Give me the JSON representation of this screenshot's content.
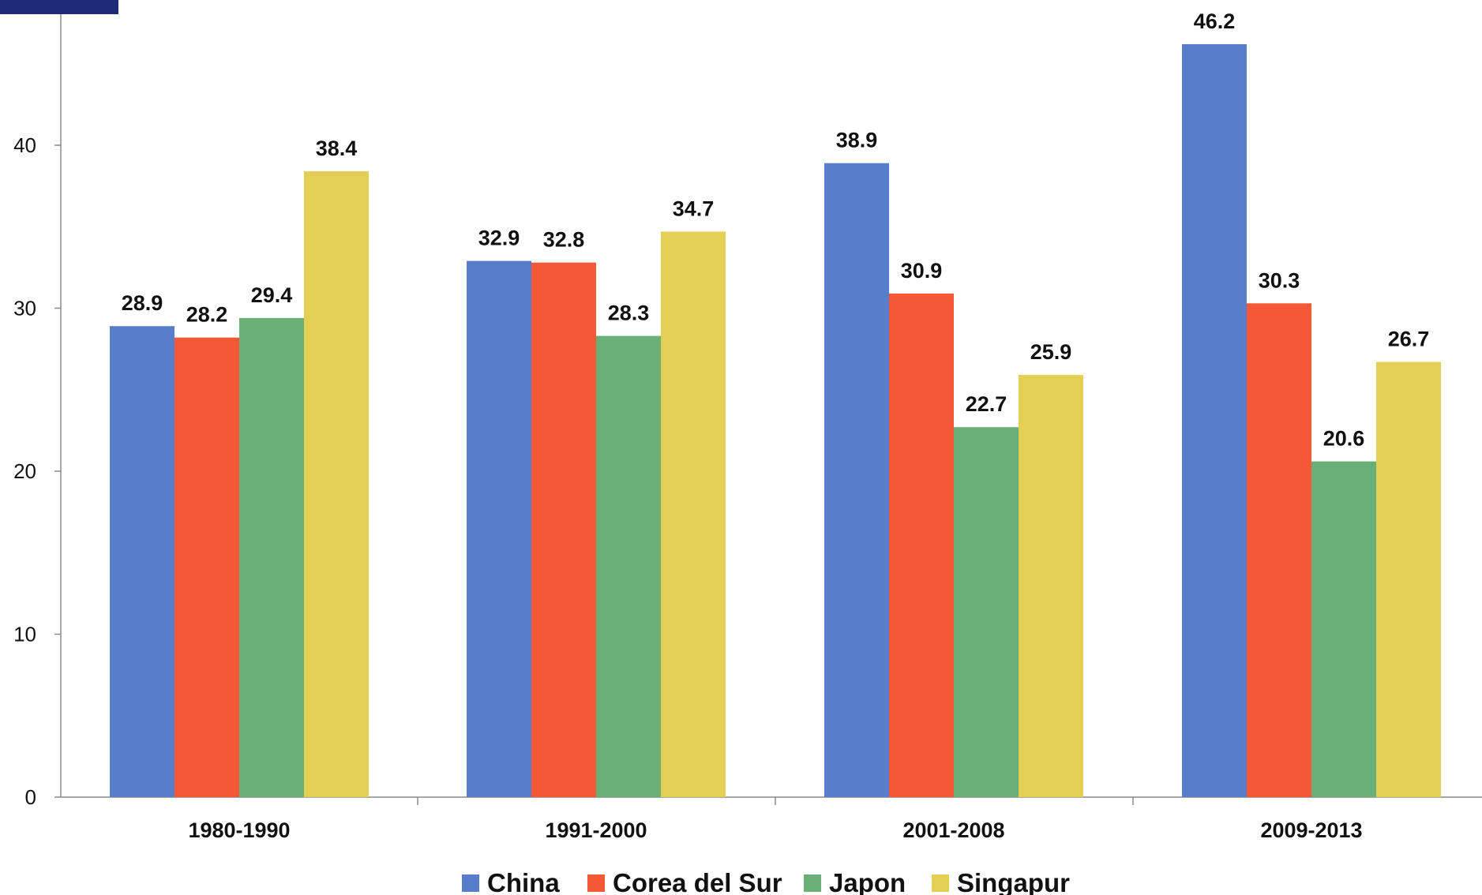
{
  "chart_data": {
    "type": "bar",
    "categories": [
      "1980-1990",
      "1991-2000",
      "2001-2008",
      "2009-2013"
    ],
    "series": [
      {
        "name": "China",
        "color": "#587ecb",
        "values": [
          28.9,
          32.9,
          38.9,
          46.2
        ]
      },
      {
        "name": "Corea del Sur",
        "color": "#f55837",
        "values": [
          28.2,
          32.8,
          30.9,
          30.3
        ]
      },
      {
        "name": "Japon",
        "color": "#6aaf78",
        "values": [
          29.4,
          28.3,
          22.7,
          20.6
        ]
      },
      {
        "name": "Singapur",
        "color": "#e4cf55",
        "values": [
          38.4,
          34.7,
          25.9,
          26.7
        ]
      }
    ],
    "yticks": [
      "0",
      "10",
      "20",
      "30",
      "40"
    ],
    "ylim": [
      0,
      50
    ],
    "title": "",
    "xlabel": "",
    "ylabel": "",
    "grid": false,
    "legend_position": "bottom"
  }
}
